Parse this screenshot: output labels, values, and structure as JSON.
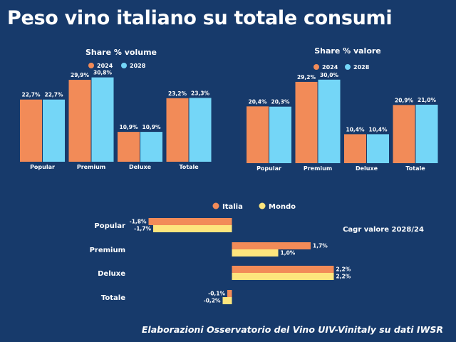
{
  "title": "Peso vino italiano su totale consumi",
  "source": "Elaborazioni Osservatorio del Vino UIV-Vinitaly su dati IWSR",
  "colors": {
    "background": "#173a6b",
    "orange": "#f28b58",
    "blue": "#74d6f7",
    "yellow": "#fde57d"
  },
  "chart_data": [
    {
      "type": "bar",
      "title": "Share % volume",
      "categories": [
        "Popular",
        "Premium",
        "Deluxe",
        "Totale"
      ],
      "series": [
        {
          "name": "2024",
          "values": [
            22.7,
            29.9,
            10.9,
            23.2
          ],
          "labels": [
            "22,7%",
            "29,9%",
            "10,9%",
            "23,2%"
          ],
          "color": "#f28b58"
        },
        {
          "name": "2028",
          "values": [
            22.7,
            30.8,
            10.9,
            23.3
          ],
          "labels": [
            "22,7%",
            "30,8%",
            "10,9%",
            "23,3%"
          ],
          "color": "#74d6f7"
        }
      ],
      "legend": "top-center",
      "ylim": [
        0,
        32
      ],
      "grid": false
    },
    {
      "type": "bar",
      "title": "Share % valore",
      "categories": [
        "Popular",
        "Premium",
        "Deluxe",
        "Totale"
      ],
      "series": [
        {
          "name": "2024",
          "values": [
            20.4,
            29.2,
            10.4,
            20.9
          ],
          "labels": [
            "20,4%",
            "29,2%",
            "10,4%",
            "20,9%"
          ],
          "color": "#f28b58"
        },
        {
          "name": "2028",
          "values": [
            20.3,
            30.0,
            10.4,
            21.0
          ],
          "labels": [
            "20,3%",
            "30,0%",
            "10,4%",
            "21,0%"
          ],
          "color": "#74d6f7"
        }
      ],
      "legend": "top-center",
      "ylim": [
        0,
        32
      ],
      "grid": false
    },
    {
      "type": "bar",
      "orientation": "horizontal",
      "annotation": "Cagr valore 2028/24",
      "categories": [
        "Popular",
        "Premium",
        "Deluxe",
        "Totale"
      ],
      "series": [
        {
          "name": "Italia",
          "values": [
            -1.8,
            1.7,
            2.2,
            -0.1
          ],
          "labels": [
            "-1,8%",
            "1,7%",
            "2,2%",
            "-0,1%"
          ],
          "color": "#f28b58"
        },
        {
          "name": "Mondo",
          "values": [
            -1.7,
            1.0,
            2.2,
            -0.2
          ],
          "labels": [
            "-1,7%",
            "1,0%",
            "2,2%",
            "-0,2%"
          ],
          "color": "#fde57d"
        }
      ],
      "legend": "top-center",
      "xlim": [
        -2.2,
        2.6
      ],
      "grid": false
    }
  ]
}
